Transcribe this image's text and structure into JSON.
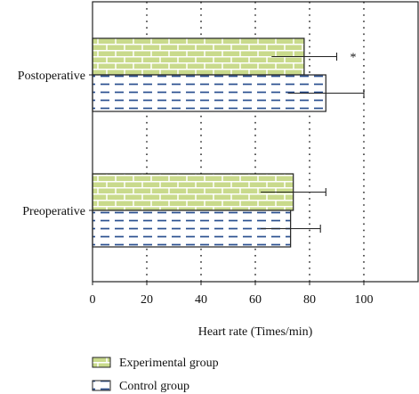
{
  "chart_data": {
    "type": "bar",
    "orientation": "horizontal",
    "categories": [
      "Postoperative",
      "Preoperative"
    ],
    "series": [
      {
        "name": "Experimental group",
        "values": [
          78,
          74
        ],
        "errors": [
          12,
          12
        ],
        "pattern": "brick",
        "color": "#c8d88a"
      },
      {
        "name": "Control group",
        "values": [
          86,
          73
        ],
        "errors": [
          14,
          11
        ],
        "pattern": "dashes",
        "color": "#2a4f8f"
      }
    ],
    "xlabel": "Heart rate (Times/min)",
    "ylabel": "",
    "xlim": [
      0,
      120
    ],
    "xticks": [
      "0",
      "20",
      "40",
      "60",
      "80",
      "100"
    ],
    "grid": "vertical dotted",
    "legend_position": "bottom-left",
    "annotations": [
      {
        "category": "Postoperative",
        "text": "*"
      }
    ]
  }
}
